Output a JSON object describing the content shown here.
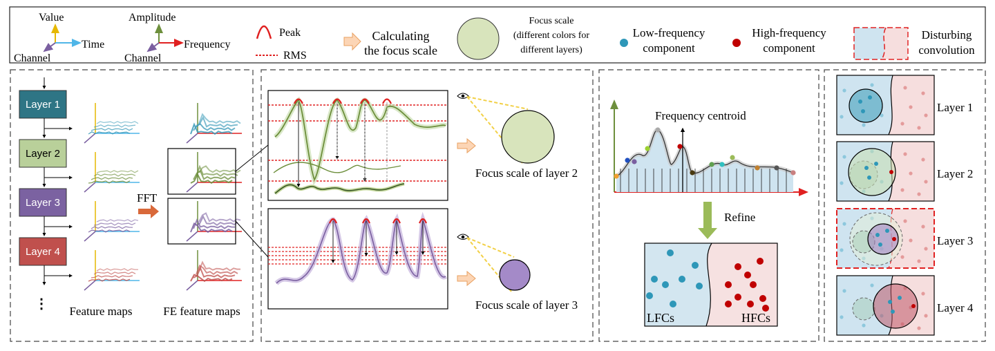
{
  "legend": {
    "axes1": {
      "value": "Value",
      "time": "Time",
      "channel": "Channel"
    },
    "axes2": {
      "amplitude": "Amplitude",
      "frequency": "Frequency",
      "channel": "Channel"
    },
    "peak": "Peak",
    "rms": "RMS",
    "calc_line1": "Calculating",
    "calc_line2": "the focus scale",
    "focus_scale_line1": "Focus scale",
    "focus_scale_line2": "(different colors for",
    "focus_scale_line3": "different layers)",
    "low_freq_line1": "Low-frequency",
    "low_freq_line2": "component",
    "high_freq_line1": "High-frequency",
    "high_freq_line2": "component",
    "disturb_line1": "Disturbing",
    "disturb_line2": "convolution"
  },
  "panel1": {
    "layers": [
      "Layer 1",
      "Layer 2",
      "Layer 3",
      "Layer 4"
    ],
    "layer_colors": [
      "#2e7585",
      "#b9d09a",
      "#7b62a1",
      "#c0504d"
    ],
    "series_colors": [
      "#3a9ab8",
      "#6d8f3c",
      "#7a5fa0",
      "#c0504d"
    ],
    "fft": "FFT",
    "dots": "⋮",
    "feature_maps": "Feature maps",
    "fe_feature_maps": "FE feature maps"
  },
  "panel2": {
    "caption_layer2": "Focus scale of layer 2",
    "caption_layer3": "Focus scale of layer 3",
    "layer2_color": "#d8e4bc",
    "layer3_color": "#a48ac8"
  },
  "panel3": {
    "frequency_centroid": "Frequency centroid",
    "refine": "Refine",
    "lfcs": "LFCs",
    "hfcs": "HFCs",
    "low_color": "#2e97b8",
    "high_color": "#c00000"
  },
  "panel4": {
    "layers": [
      "Layer 1",
      "Layer 2",
      "Layer 3",
      "Layer 4"
    ],
    "focus_colors": [
      "#3a9ab8",
      "#c9deb0",
      "#a07cc0",
      "#c05a6a"
    ]
  }
}
